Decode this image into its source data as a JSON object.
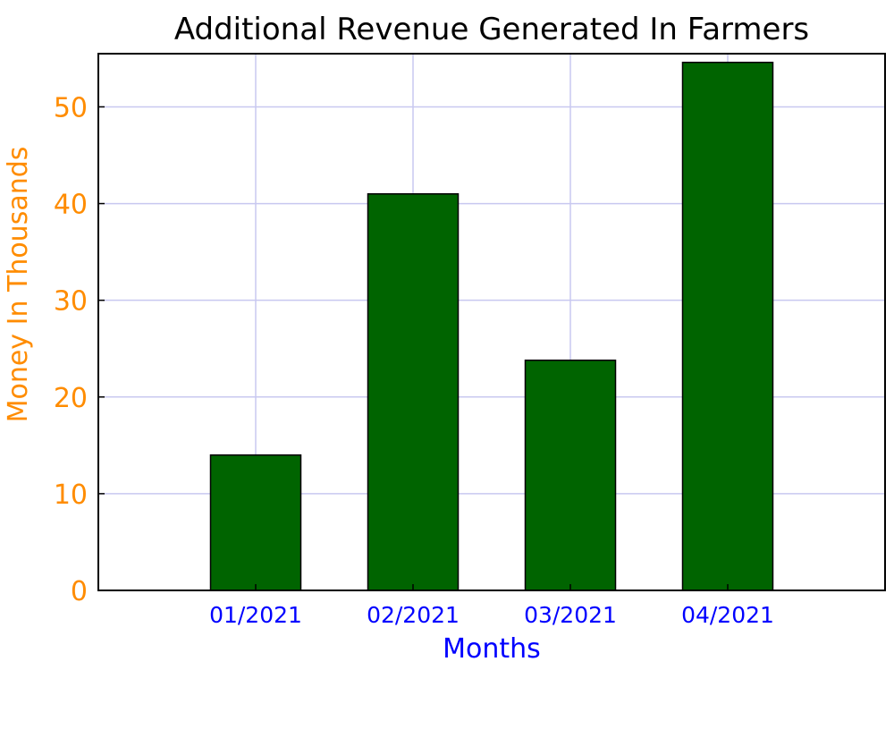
{
  "chart_data": {
    "type": "bar",
    "title": "Additional Revenue Generated In Farmers",
    "xlabel": "Months",
    "ylabel": "Money In Thousands",
    "categories": [
      "01/2021",
      "02/2021",
      "03/2021",
      "04/2021"
    ],
    "values": [
      14,
      41,
      23.8,
      54.6
    ],
    "ylim": [
      0,
      55.5
    ],
    "yticks": [
      0,
      10,
      20,
      30,
      40,
      50
    ],
    "grid": true,
    "legend": "none",
    "colors": {
      "bar_fill": "#006400",
      "bar_stroke": "#000000",
      "grid": "#c8c8f0",
      "frame": "#000000",
      "title": "#000000",
      "ylabel": "#ff8c00",
      "ytick_labels": "#ff8c00",
      "xlabel": "#0000ff",
      "xtick_labels": "#0000ff"
    }
  }
}
